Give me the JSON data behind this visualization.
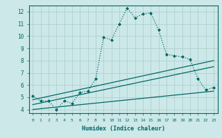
{
  "xlabel": "Humidex (Indice chaleur)",
  "background_color": "#cce8e8",
  "grid_color": "#b0d0d0",
  "line_color": "#006666",
  "xlim": [
    -0.5,
    23.5
  ],
  "ylim": [
    3.7,
    12.5
  ],
  "yticks": [
    4,
    5,
    6,
    7,
    8,
    9,
    10,
    11,
    12
  ],
  "xticks": [
    0,
    1,
    2,
    3,
    4,
    5,
    6,
    7,
    8,
    9,
    10,
    11,
    12,
    13,
    14,
    15,
    16,
    17,
    18,
    19,
    20,
    21,
    22,
    23
  ],
  "series": [
    {
      "x": [
        0,
        1,
        2,
        3,
        4,
        5,
        6,
        7,
        8,
        9,
        10,
        11,
        12,
        13,
        14,
        15,
        16,
        17,
        18,
        19,
        20,
        21,
        22,
        23
      ],
      "y": [
        5.1,
        4.7,
        4.7,
        4.0,
        4.7,
        4.5,
        5.4,
        5.5,
        6.5,
        9.9,
        9.7,
        11.0,
        12.3,
        11.5,
        11.8,
        11.9,
        10.5,
        8.5,
        8.4,
        8.3,
        8.1,
        6.5,
        5.6,
        5.8
      ],
      "style": "dotted",
      "marker": "D",
      "markersize": 2.0
    },
    {
      "x": [
        0,
        23
      ],
      "y": [
        4.8,
        8.0
      ],
      "style": "solid",
      "marker": null,
      "markersize": 0
    },
    {
      "x": [
        0,
        23
      ],
      "y": [
        4.4,
        7.5
      ],
      "style": "solid",
      "marker": null,
      "markersize": 0
    },
    {
      "x": [
        0,
        23
      ],
      "y": [
        4.0,
        5.5
      ],
      "style": "solid",
      "marker": null,
      "markersize": 0
    }
  ]
}
